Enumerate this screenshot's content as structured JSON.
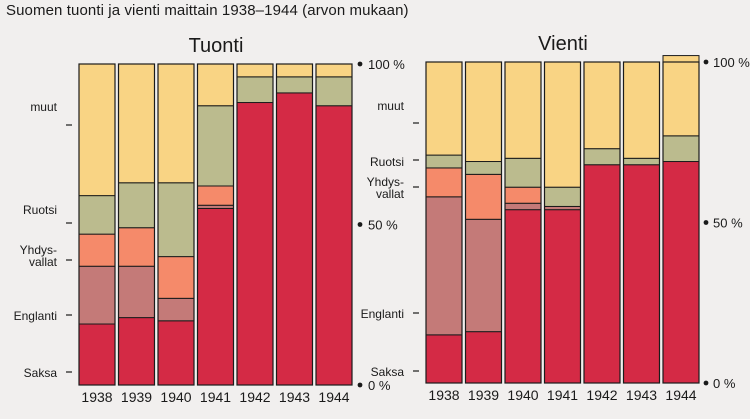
{
  "title": "Suomen tuonti ja vienti maittain 1938–1944 (arvon mukaan)",
  "chart_data": [
    {
      "type": "bar",
      "stacked": true,
      "percent_stacked": true,
      "title": "Tuonti",
      "categories": [
        "1938",
        "1939",
        "1940",
        "1941",
        "1942",
        "1943",
        "1944"
      ],
      "ylim": [
        0,
        100
      ],
      "ytick_labels": [
        "100 %",
        "50 %",
        "0 %"
      ],
      "yticks": [
        100,
        50,
        0
      ],
      "series": [
        {
          "name": "Saksa",
          "color": "#d42a45",
          "values": [
            19,
            21,
            20,
            55,
            88,
            91,
            87
          ]
        },
        {
          "name": "Englanti",
          "color": "#c47a78",
          "values": [
            18,
            16,
            7,
            1,
            0,
            0,
            0
          ]
        },
        {
          "name": "Yhdys-vallat",
          "color": "#f58a6a",
          "values": [
            10,
            12,
            13,
            6,
            0,
            0,
            0
          ]
        },
        {
          "name": "Ruotsi",
          "color": "#bbbb8e",
          "values": [
            12,
            14,
            23,
            25,
            8,
            5,
            9
          ]
        },
        {
          "name": "muut",
          "color": "#f9d484",
          "values": [
            41,
            37,
            37,
            13,
            4,
            4,
            4
          ]
        }
      ]
    },
    {
      "type": "bar",
      "stacked": true,
      "percent_stacked": true,
      "title": "Vienti",
      "categories": [
        "1938",
        "1939",
        "1940",
        "1941",
        "1942",
        "1943",
        "1944"
      ],
      "ylim": [
        0,
        100
      ],
      "ytick_labels": [
        "100 %",
        "50 %",
        "0 %"
      ],
      "yticks": [
        100,
        50,
        0
      ],
      "series": [
        {
          "name": "Saksa",
          "color": "#d42a45",
          "values": [
            15,
            16,
            54,
            54,
            68,
            68,
            69
          ]
        },
        {
          "name": "Englanti",
          "color": "#c47a78",
          "values": [
            43,
            35,
            2,
            1,
            0,
            0,
            0
          ]
        },
        {
          "name": "Yhdys-vallat",
          "color": "#f58a6a",
          "values": [
            9,
            14,
            5,
            0,
            0,
            0,
            0
          ]
        },
        {
          "name": "Ruotsi",
          "color": "#bbbb8e",
          "values": [
            4,
            4,
            9,
            6,
            5,
            2,
            8
          ]
        },
        {
          "name": "muut",
          "color": "#f9d484",
          "values": [
            29,
            31,
            30,
            39,
            27,
            30,
            25
          ]
        }
      ]
    }
  ]
}
